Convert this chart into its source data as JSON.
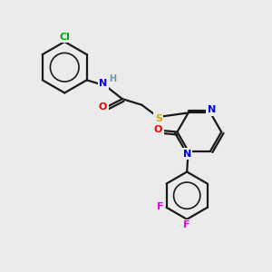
{
  "bg_color": "#ebebeb",
  "bond_color": "#1a1a1a",
  "atom_colors": {
    "Cl": "#00aa00",
    "N": "#0000ee",
    "H": "#6699aa",
    "O": "#ee0000",
    "S": "#ccaa00",
    "F": "#ee00ee"
  },
  "figsize": [
    3.0,
    3.0
  ],
  "dpi": 100
}
